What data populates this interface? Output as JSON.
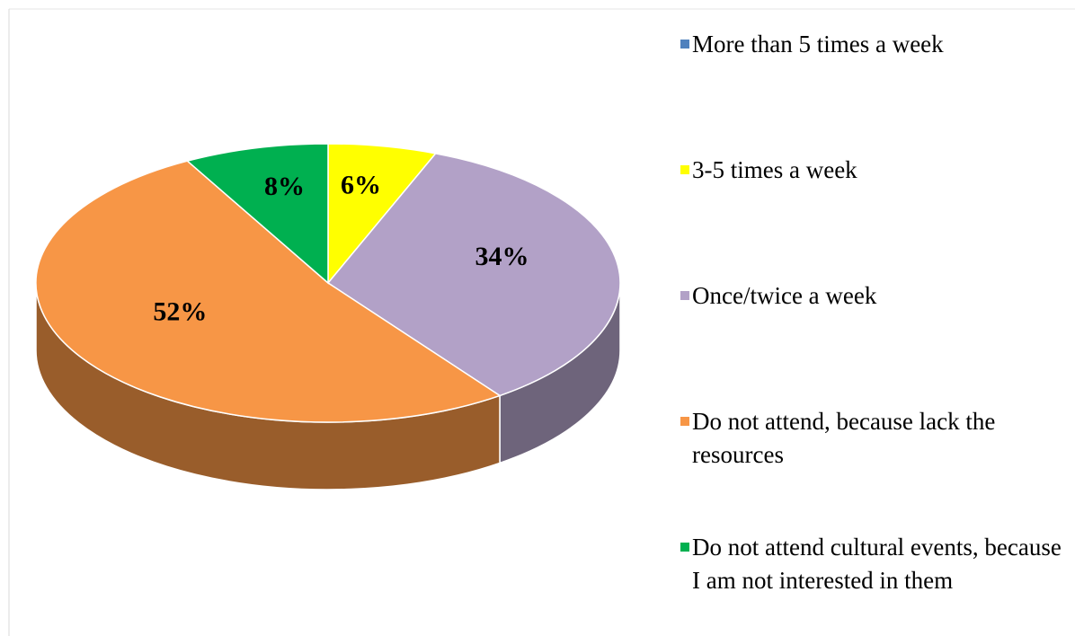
{
  "chart_data": {
    "type": "pie",
    "categories": [
      "More than 5 times a week",
      "3-5 times a week",
      "Once/twice a week",
      "Do not attend, because lack the resources",
      "Do not attend cultural events, because I am not interested in them"
    ],
    "values": [
      0,
      6,
      34,
      52,
      8
    ],
    "value_labels": [
      null,
      "6%",
      "34%",
      "52%",
      "8%"
    ],
    "colors": [
      "#4f81bd",
      "#ffff00",
      "#b2a1c7",
      "#f79646",
      "#00b050"
    ],
    "legend": "right"
  }
}
